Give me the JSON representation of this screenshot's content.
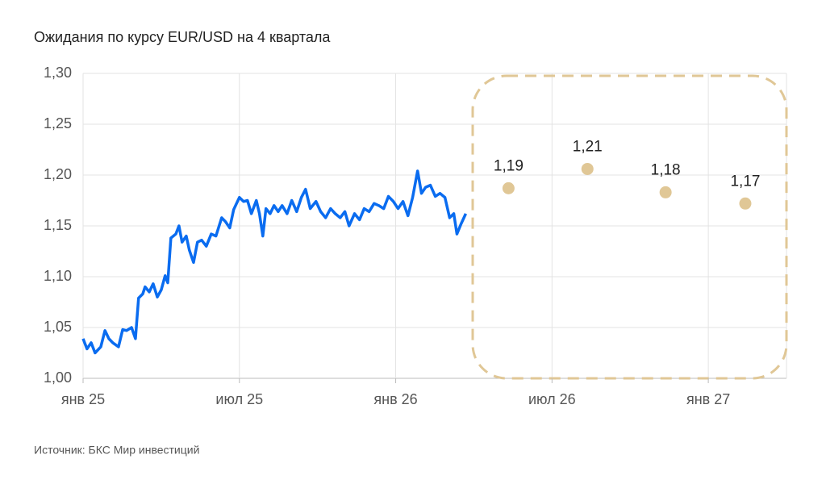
{
  "chart_data": {
    "type": "line",
    "title": "Ожидания по курсу EUR/USD на 4 квартала",
    "source": "Источник: БКС Мир инвестиций",
    "xlim": [
      0,
      27
    ],
    "xticks": [
      {
        "value": 0,
        "label": "янв 25"
      },
      {
        "value": 6,
        "label": "июл 25"
      },
      {
        "value": 12,
        "label": "янв 26"
      },
      {
        "value": 18,
        "label": "июл 26"
      },
      {
        "value": 24,
        "label": "янв 27"
      }
    ],
    "ylim": [
      1.0,
      1.3
    ],
    "yticks": [
      {
        "value": 1.0,
        "label": "1,00"
      },
      {
        "value": 1.05,
        "label": "1,05"
      },
      {
        "value": 1.1,
        "label": "1,10"
      },
      {
        "value": 1.15,
        "label": "1,15"
      },
      {
        "value": 1.2,
        "label": "1,20"
      },
      {
        "value": 1.25,
        "label": "1,25"
      },
      {
        "value": 1.3,
        "label": "1,30"
      }
    ],
    "grid": true,
    "series": [
      {
        "type": "line",
        "color": "#0a6cf0",
        "x": [
          0,
          0.15,
          0.31,
          0.46,
          0.68,
          0.84,
          0.99,
          1.14,
          1.36,
          1.52,
          1.67,
          1.86,
          2.01,
          2.13,
          2.29,
          2.38,
          2.54,
          2.69,
          2.85,
          3.0,
          3.15,
          3.25,
          3.37,
          3.56,
          3.68,
          3.8,
          3.96,
          4.08,
          4.24,
          4.39,
          4.55,
          4.73,
          4.92,
          5.1,
          5.32,
          5.47,
          5.63,
          5.78,
          6.0,
          6.16,
          6.31,
          6.46,
          6.65,
          6.77,
          6.9,
          7.02,
          7.18,
          7.33,
          7.49,
          7.64,
          7.83,
          8.01,
          8.2,
          8.38,
          8.54,
          8.72,
          8.94,
          9.12,
          9.31,
          9.5,
          9.68,
          9.87,
          10.05,
          10.21,
          10.42,
          10.61,
          10.79,
          10.98,
          11.17,
          11.35,
          11.54,
          11.72,
          11.91,
          12.09,
          12.28,
          12.47,
          12.65,
          12.84,
          12.99,
          13.15,
          13.33,
          13.52,
          13.7,
          13.89,
          14.07,
          14.23,
          14.35,
          14.51,
          14.69
        ],
        "values": [
          1.039,
          1.029,
          1.035,
          1.025,
          1.031,
          1.047,
          1.039,
          1.035,
          1.031,
          1.048,
          1.047,
          1.05,
          1.039,
          1.079,
          1.083,
          1.09,
          1.085,
          1.093,
          1.08,
          1.087,
          1.101,
          1.094,
          1.138,
          1.142,
          1.15,
          1.134,
          1.14,
          1.126,
          1.114,
          1.134,
          1.136,
          1.13,
          1.142,
          1.14,
          1.158,
          1.154,
          1.148,
          1.166,
          1.178,
          1.174,
          1.175,
          1.162,
          1.175,
          1.162,
          1.14,
          1.167,
          1.162,
          1.17,
          1.164,
          1.17,
          1.162,
          1.175,
          1.164,
          1.178,
          1.186,
          1.167,
          1.174,
          1.164,
          1.158,
          1.167,
          1.162,
          1.158,
          1.164,
          1.15,
          1.162,
          1.156,
          1.167,
          1.164,
          1.172,
          1.17,
          1.167,
          1.179,
          1.174,
          1.167,
          1.174,
          1.16,
          1.178,
          1.204,
          1.182,
          1.188,
          1.19,
          1.179,
          1.182,
          1.178,
          1.158,
          1.162,
          1.142,
          1.152,
          1.162
        ]
      },
      {
        "type": "scatter",
        "color": "#e0c796",
        "x": [
          16.33,
          19.36,
          22.36,
          25.42
        ],
        "values": [
          1.187,
          1.206,
          1.183,
          1.172
        ],
        "value_labels": [
          "1,19",
          "1,21",
          "1,18",
          "1,17"
        ]
      }
    ]
  }
}
